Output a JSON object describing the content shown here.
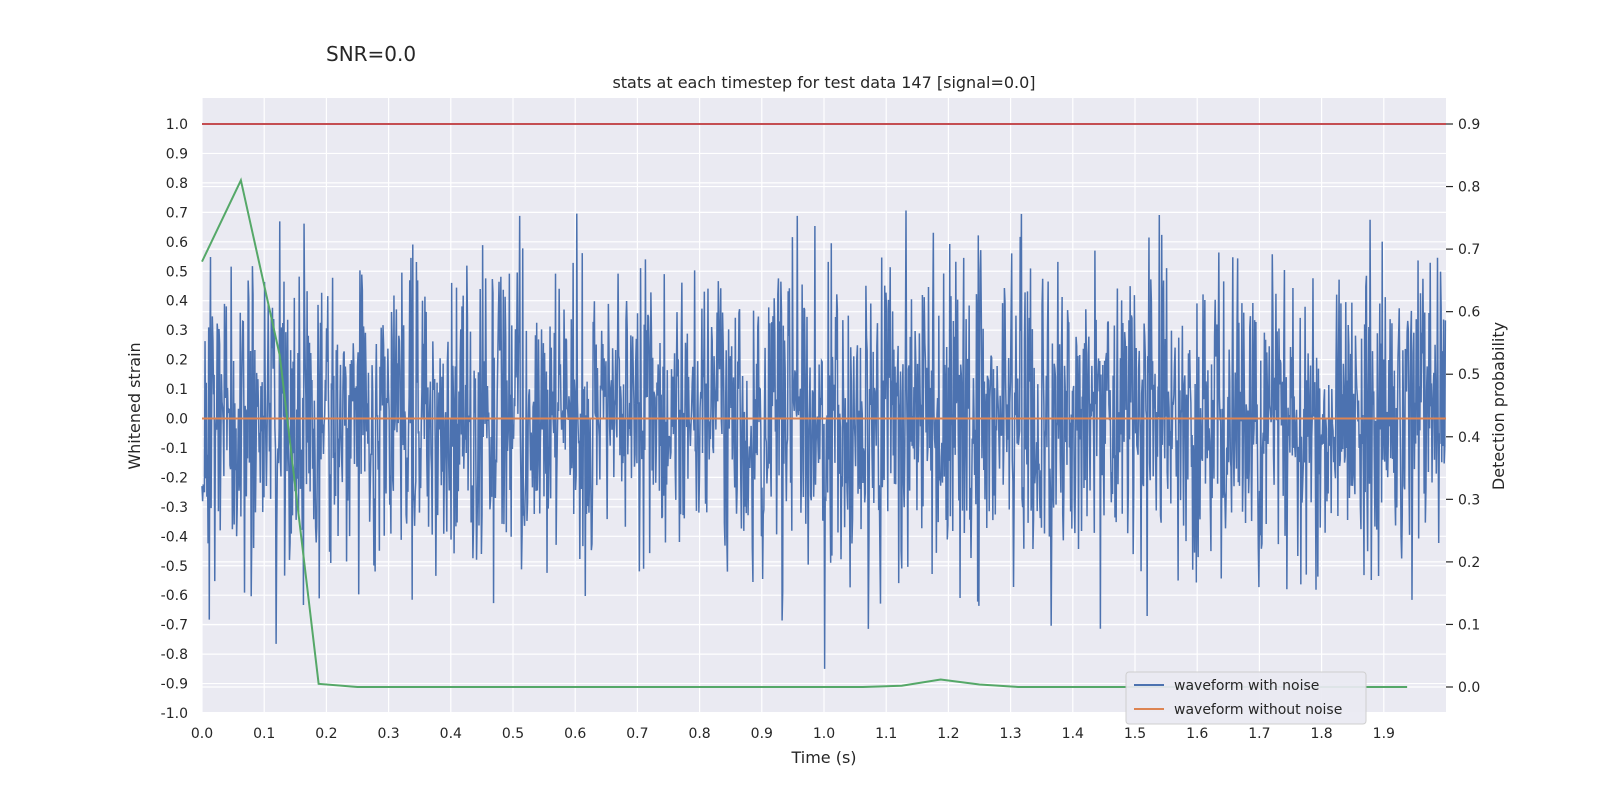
{
  "suptitle": "SNR=0.0",
  "chart_data": {
    "type": "line",
    "title": "stats at each timestep for test data 147 [signal=0.0]",
    "xlabel": "Time (s)",
    "ylabel": "Whitened strain",
    "ylabel_right": "Detection probability",
    "xlim": [
      0.0,
      2.0
    ],
    "ylim": [
      -1.0,
      1.0
    ],
    "ylim_right": [
      -0.04,
      0.9
    ],
    "x_ticks": [
      "0.0",
      "0.1",
      "0.2",
      "0.3",
      "0.4",
      "0.5",
      "0.6",
      "0.7",
      "0.8",
      "0.9",
      "1.0",
      "1.1",
      "1.2",
      "1.3",
      "1.4",
      "1.5",
      "1.6",
      "1.7",
      "1.8",
      "1.9"
    ],
    "x_tick_values": [
      0.0,
      0.1,
      0.2,
      0.3,
      0.4,
      0.5,
      0.6,
      0.7,
      0.8,
      0.9,
      1.0,
      1.1,
      1.2,
      1.3,
      1.4,
      1.5,
      1.6,
      1.7,
      1.8,
      1.9
    ],
    "y_ticks": [
      "1.0",
      "0.9",
      "0.8",
      "0.7",
      "0.6",
      "0.5",
      "0.4",
      "0.3",
      "0.2",
      "0.1",
      "0.0",
      "-0.1",
      "-0.2",
      "-0.3",
      "-0.4",
      "-0.5",
      "-0.6",
      "-0.7",
      "-0.8",
      "-0.9",
      "-1.0"
    ],
    "y_tick_values": [
      1.0,
      0.9,
      0.8,
      0.7,
      0.6,
      0.5,
      0.4,
      0.3,
      0.2,
      0.1,
      0.0,
      -0.1,
      -0.2,
      -0.3,
      -0.4,
      -0.5,
      -0.6,
      -0.7,
      -0.8,
      -0.9,
      -1.0
    ],
    "y_right_ticks": [
      "0.9",
      "0.8",
      "0.7",
      "0.6",
      "0.5",
      "0.4",
      "0.3",
      "0.2",
      "0.1",
      "0.0"
    ],
    "y_right_tick_values": [
      0.9,
      0.8,
      0.7,
      0.6,
      0.5,
      0.4,
      0.3,
      0.2,
      0.1,
      0.0
    ],
    "threshold": {
      "value": 0.9,
      "axis": "right",
      "color": "#c44e52"
    },
    "series": [
      {
        "name": "waveform with noise",
        "color": "#4c72b0",
        "kind": "noise",
        "n_points": 2048,
        "std": 0.26,
        "seed": 147
      },
      {
        "name": "waveform without noise",
        "color": "#dd8452",
        "x": [
          0.0,
          2.0
        ],
        "y": [
          0.0,
          0.0
        ]
      },
      {
        "name": "detection probability",
        "axis": "right",
        "color": "#55a868",
        "x": [
          0.0,
          0.0625,
          0.125,
          0.1875,
          0.25,
          0.3125,
          0.375,
          0.4375,
          0.5,
          0.5625,
          0.625,
          0.6875,
          0.75,
          0.8125,
          0.875,
          0.9375,
          1.0,
          1.0625,
          1.125,
          1.1875,
          1.25,
          1.3125,
          1.375,
          1.4375,
          1.5,
          1.5625,
          1.625,
          1.6875,
          1.75,
          1.8125,
          1.875,
          1.9375
        ],
        "y": [
          0.68,
          0.81,
          0.53,
          0.005,
          0.0,
          0.0,
          0.0,
          0.0,
          0.0,
          0.0,
          0.0,
          0.0,
          0.0,
          0.0,
          0.0,
          0.0,
          0.0,
          0.0,
          0.002,
          0.012,
          0.004,
          0.0,
          0.0,
          0.0,
          0.0,
          0.0,
          0.0,
          0.0,
          0.0,
          0.0,
          0.0,
          0.0
        ]
      }
    ],
    "legend": {
      "position": "lower-right",
      "entries": [
        {
          "label": "waveform with noise",
          "color": "#4c72b0"
        },
        {
          "label": "waveform without noise",
          "color": "#dd8452"
        }
      ]
    },
    "background": "#eaeaf2",
    "grid": true
  }
}
